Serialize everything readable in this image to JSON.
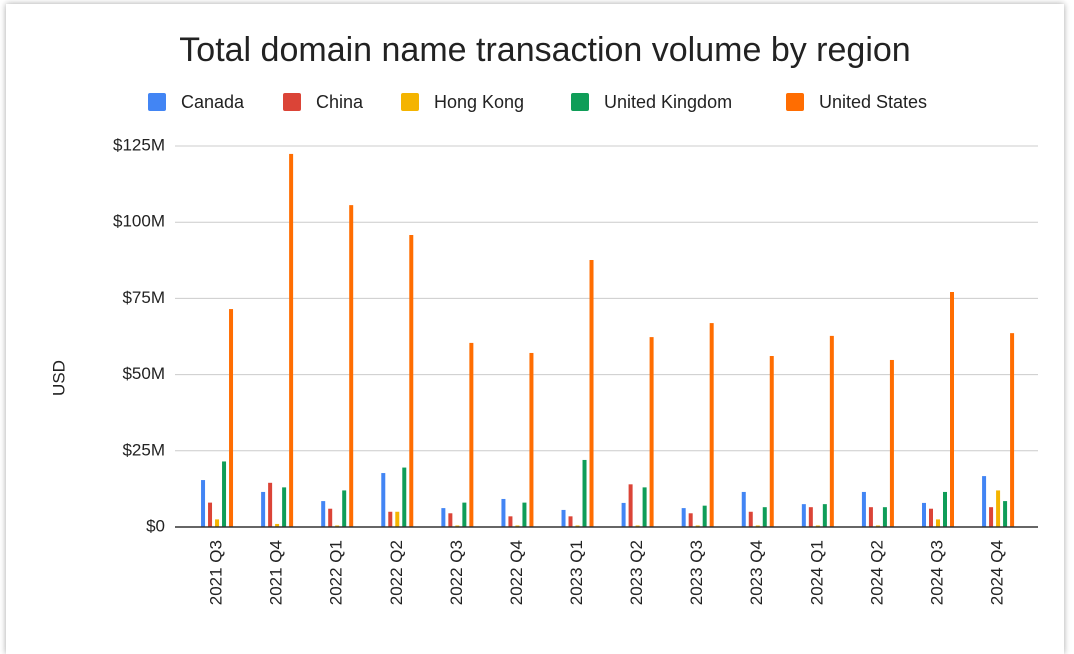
{
  "chart_data": {
    "type": "bar",
    "title": "Total domain name transaction volume by region",
    "y_label": "USD",
    "categories": [
      "2021 Q3",
      "2021 Q4",
      "2022 Q1",
      "2022 Q2",
      "2022 Q3",
      "2022 Q4",
      "2023 Q1",
      "2023 Q2",
      "2023 Q3",
      "2023 Q4",
      "2024 Q1",
      "2024 Q2",
      "2024 Q3",
      "2024 Q4"
    ],
    "series": [
      {
        "name": "Canada",
        "color": "#4285f4",
        "values": [
          15.4,
          11.5,
          8.5,
          17.7,
          6.2,
          9.2,
          5.6,
          7.9,
          6.2,
          11.5,
          7.5,
          11.5,
          7.9,
          16.7
        ]
      },
      {
        "name": "China",
        "color": "#db4437",
        "values": [
          8,
          14.5,
          6,
          5,
          4.5,
          3.5,
          3.5,
          14,
          4.5,
          5,
          6.5,
          6.5,
          6,
          6.5
        ]
      },
      {
        "name": "Hong Kong",
        "color": "#f4b400",
        "values": [
          2.5,
          1,
          0.5,
          5,
          0.5,
          0.5,
          0.5,
          0.5,
          0.5,
          0.5,
          0.5,
          0.5,
          2.5,
          12
        ]
      },
      {
        "name": "United Kingdom",
        "color": "#0f9d58",
        "values": [
          21.5,
          13,
          12,
          19.5,
          8,
          8,
          22,
          13,
          7,
          6.5,
          7.5,
          6.5,
          11.5,
          8.5
        ]
      },
      {
        "name": "United States",
        "color": "#ff6d01",
        "values": [
          71.5,
          122.4,
          105.6,
          95.8,
          60.4,
          57.1,
          87.6,
          62.3,
          66.9,
          56.1,
          62.7,
          54.8,
          77.1,
          63.6
        ]
      }
    ],
    "ylim": [
      0,
      125
    ],
    "yticks": [
      {
        "value": 0,
        "label": "$0"
      },
      {
        "value": 25,
        "label": "$25M"
      },
      {
        "value": 50,
        "label": "$50M"
      },
      {
        "value": 75,
        "label": "$75M"
      },
      {
        "value": 100,
        "label": "$100M"
      },
      {
        "value": 125,
        "label": "$125M"
      }
    ],
    "grid": true,
    "legend": "top"
  }
}
